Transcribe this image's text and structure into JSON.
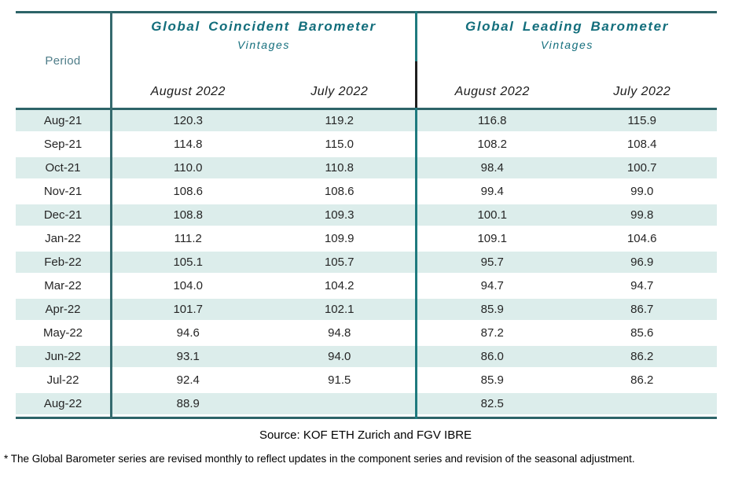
{
  "header": {
    "period_label": "Period",
    "sections": [
      {
        "title": "Global Coincident Barometer",
        "subtitle": "Vintages",
        "columns": [
          "August 2022",
          "July 2022"
        ]
      },
      {
        "title": "Global Leading Barometer",
        "subtitle": "Vintages",
        "columns": [
          "August 2022",
          "July 2022"
        ]
      }
    ]
  },
  "table": {
    "rows": [
      {
        "period": "Aug-21",
        "coincident_aug_2022": "120.3",
        "coincident_jul_2022": "119.2",
        "leading_aug_2022": "116.8",
        "leading_jul_2022": "115.9"
      },
      {
        "period": "Sep-21",
        "coincident_aug_2022": "114.8",
        "coincident_jul_2022": "115.0",
        "leading_aug_2022": "108.2",
        "leading_jul_2022": "108.4"
      },
      {
        "period": "Oct-21",
        "coincident_aug_2022": "110.0",
        "coincident_jul_2022": "110.8",
        "leading_aug_2022": "98.4",
        "leading_jul_2022": "100.7"
      },
      {
        "period": "Nov-21",
        "coincident_aug_2022": "108.6",
        "coincident_jul_2022": "108.6",
        "leading_aug_2022": "99.4",
        "leading_jul_2022": "99.0"
      },
      {
        "period": "Dec-21",
        "coincident_aug_2022": "108.8",
        "coincident_jul_2022": "109.3",
        "leading_aug_2022": "100.1",
        "leading_jul_2022": "99.8"
      },
      {
        "period": "Jan-22",
        "coincident_aug_2022": "111.2",
        "coincident_jul_2022": "109.9",
        "leading_aug_2022": "109.1",
        "leading_jul_2022": "104.6"
      },
      {
        "period": "Feb-22",
        "coincident_aug_2022": "105.1",
        "coincident_jul_2022": "105.7",
        "leading_aug_2022": "95.7",
        "leading_jul_2022": "96.9"
      },
      {
        "period": "Mar-22",
        "coincident_aug_2022": "104.0",
        "coincident_jul_2022": "104.2",
        "leading_aug_2022": "94.7",
        "leading_jul_2022": "94.7"
      },
      {
        "period": "Apr-22",
        "coincident_aug_2022": "101.7",
        "coincident_jul_2022": "102.1",
        "leading_aug_2022": "85.9",
        "leading_jul_2022": "86.7"
      },
      {
        "period": "May-22",
        "coincident_aug_2022": "94.6",
        "coincident_jul_2022": "94.8",
        "leading_aug_2022": "87.2",
        "leading_jul_2022": "85.6"
      },
      {
        "period": "Jun-22",
        "coincident_aug_2022": "93.1",
        "coincident_jul_2022": "94.0",
        "leading_aug_2022": "86.0",
        "leading_jul_2022": "86.2"
      },
      {
        "period": "Jul-22",
        "coincident_aug_2022": "92.4",
        "coincident_jul_2022": "91.5",
        "leading_aug_2022": "85.9",
        "leading_jul_2022": "86.2"
      },
      {
        "period": "Aug-22",
        "coincident_aug_2022": "88.9",
        "coincident_jul_2022": "",
        "leading_aug_2022": "82.5",
        "leading_jul_2022": ""
      }
    ]
  },
  "footer": {
    "source": "Source: KOF ETH Zurich and FGV IBRE",
    "footnote": "* The Global Barometer series are revised monthly to reflect updates in the component series and revision of the seasonal adjustment."
  },
  "colors": {
    "accent_teal_text": "#136e7c",
    "teal_line": "#2d6468",
    "section_divider_teal": "#1f7a7e",
    "period_divider": "#356a6e",
    "stripe": "#dcedeb",
    "period_label_color": "#4f7d89"
  },
  "chart_data": {
    "type": "table",
    "title": "Global Barometers Vintages (August 2022 vs July 2022)",
    "column_groups": [
      "Global Coincident Barometer Vintages",
      "Global Leading Barometer Vintages"
    ],
    "columns": [
      "Period",
      "Coincident August 2022",
      "Coincident July 2022",
      "Leading August 2022",
      "Leading July 2022"
    ],
    "rows": [
      [
        "Aug-21",
        120.3,
        119.2,
        116.8,
        115.9
      ],
      [
        "Sep-21",
        114.8,
        115.0,
        108.2,
        108.4
      ],
      [
        "Oct-21",
        110.0,
        110.8,
        98.4,
        100.7
      ],
      [
        "Nov-21",
        108.6,
        108.6,
        99.4,
        99.0
      ],
      [
        "Dec-21",
        108.8,
        109.3,
        100.1,
        99.8
      ],
      [
        "Jan-22",
        111.2,
        109.9,
        109.1,
        104.6
      ],
      [
        "Feb-22",
        105.1,
        105.7,
        95.7,
        96.9
      ],
      [
        "Mar-22",
        104.0,
        104.2,
        94.7,
        94.7
      ],
      [
        "Apr-22",
        101.7,
        102.1,
        85.9,
        86.7
      ],
      [
        "May-22",
        94.6,
        94.8,
        87.2,
        85.6
      ],
      [
        "Jun-22",
        93.1,
        94.0,
        86.0,
        86.2
      ],
      [
        "Jul-22",
        92.4,
        91.5,
        85.9,
        86.2
      ],
      [
        "Aug-22",
        88.9,
        null,
        82.5,
        null
      ]
    ],
    "source_note": "Source: KOF ETH Zurich and FGV IBRE",
    "footnote": "* The Global Barometer series are revised monthly to reflect updates in the component series and revision of the seasonal adjustment."
  }
}
